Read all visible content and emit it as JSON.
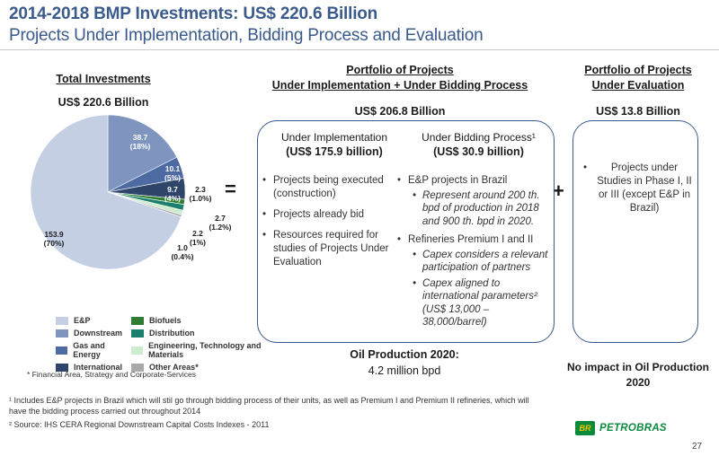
{
  "header": {
    "title": "2014-2018 BMP Investments: US$ 220.6 Billion",
    "subtitle": "Projects Under Implementation, Bidding Process and Evaluation"
  },
  "left": {
    "heading": "Total Investments",
    "amount": "US$ 220.6 Billion"
  },
  "chart_data": {
    "type": "pie",
    "categories": [
      "E&P",
      "Downstream",
      "Gas and Energy",
      "International",
      "Other Areas*",
      "Biofuels",
      "Distribution",
      "Engineering, Technology and Materials"
    ],
    "values": [
      153.9,
      38.7,
      10.1,
      9.7,
      1.0,
      2.3,
      2.7,
      2.2
    ],
    "labels": [
      {
        "value": "153.9",
        "pct": "(70%)"
      },
      {
        "value": "38.7",
        "pct": "(18%)"
      },
      {
        "value": "10.1",
        "pct": "(5%)"
      },
      {
        "value": "9.7",
        "pct": "(4%)"
      },
      {
        "value": "1.0",
        "pct": "(0.4%)"
      },
      {
        "value": "2.3",
        "pct": "(1.0%)"
      },
      {
        "value": "2.7",
        "pct": "(1.2%)"
      },
      {
        "value": "2.2",
        "pct": "(1%)"
      }
    ],
    "colors": [
      "#c5cfe4",
      "#7f95c0",
      "#4d6aa2",
      "#2e4468",
      "#a9a9a9",
      "#2e7d32",
      "#1b7f6e",
      "#cdebcd"
    ],
    "legend_position": "bottom"
  },
  "legend_items": [
    {
      "label": "E&P",
      "color": "#c5cfe4"
    },
    {
      "label": "Biofuels",
      "color": "#2e7d32"
    },
    {
      "label": "Downstream",
      "color": "#7f95c0"
    },
    {
      "label": "Distribution",
      "color": "#1b7f6e"
    },
    {
      "label": "Gas and Energy",
      "color": "#4d6aa2"
    },
    {
      "label": "Engineering, Technology and Materials",
      "color": "#cdebcd"
    },
    {
      "label": "International",
      "color": "#2e4468"
    },
    {
      "label": "Other Areas*",
      "color": "#a9a9a9"
    }
  ],
  "left_note": "* Financial Area, Strategy and Corporate-Services",
  "equals": "=",
  "plus": "+",
  "middle": {
    "heading_line1": "Portfolio of Projects",
    "heading_line2": "Under Implementation + Under Bidding Process",
    "amount": "US$ 206.8 Billion",
    "col1_title": "Under Implementation",
    "col1_amount": "(US$ 175.9 billion)",
    "col2_title": "Under Bidding Process¹",
    "col2_amount": "(US$ 30.9 billion)",
    "col1_bullets": [
      "Projects being executed (construction)",
      "Projects already bid",
      "Resources required for studies of Projects Under Evaluation"
    ],
    "col2_b1": "E&P  projects in Brazil",
    "col2_b1_sub": [
      "Represent around 200 th. bpd of production in 2018 and 900 th. bpd in 2020."
    ],
    "col2_b2": "Refineries Premium I and II",
    "col2_b2_sub": [
      "Capex considers a relevant participation of partners",
      "Capex aligned to international parameters² (US$ 13,000 – 38,000/barrel)"
    ],
    "oil_line1": "Oil Production 2020:",
    "oil_line2": "4.2 million bpd"
  },
  "right": {
    "heading_line1": "Portfolio of Projects",
    "heading_line2": "Under Evaluation",
    "amount": "US$ 13.8 Billion",
    "bullet": "Projects under Studies in  Phase I, II or III (except E&P in Brazil)",
    "impact": "No impact in Oil Production 2020"
  },
  "footnotes": {
    "f1": "¹ Includes E&P projects in Brazil which will stil go through bidding process of their units, as well as Premium I and Premium II refineries, which will have the bidding process carried out throughout 2014",
    "f2": "² Source: IHS CERA Regional Downstream Capital Costs Indexes - 2011"
  },
  "brand": {
    "logo_letters": "BR",
    "name": "PETROBRAS",
    "green": "#0b8a3c",
    "yellow": "#f5c400"
  },
  "page_number": "27"
}
